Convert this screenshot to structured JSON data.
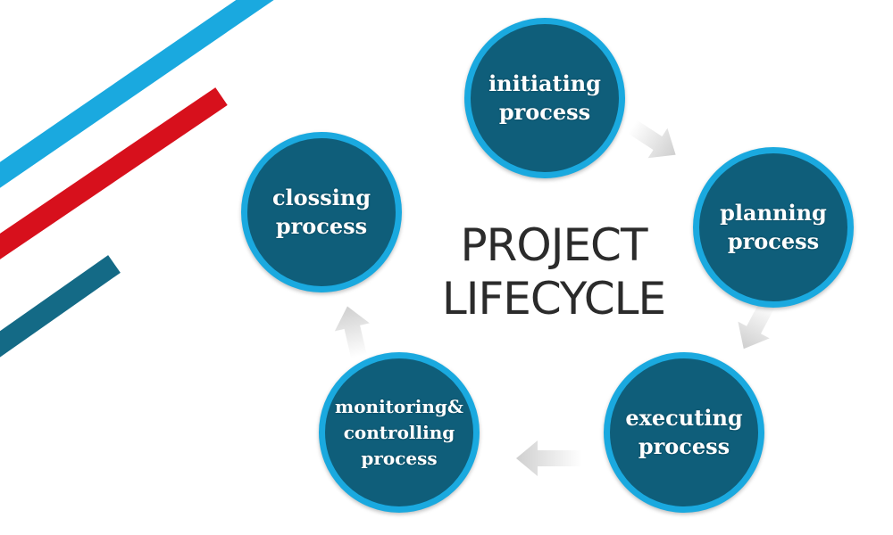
{
  "diagram": {
    "title": "PROJECT\nLIFECYCLE",
    "nodes": [
      {
        "id": "initiating",
        "label": "initiating\nprocess"
      },
      {
        "id": "planning",
        "label": "planning\nprocess"
      },
      {
        "id": "executing",
        "label": "executing\nprocess"
      },
      {
        "id": "monitoring",
        "label": "monitoring&\ncontrolling\nprocess"
      },
      {
        "id": "closing",
        "label": "clossing\nprocess"
      }
    ],
    "flow": [
      "initiating",
      "planning",
      "executing",
      "monitoring",
      "closing"
    ]
  },
  "colors": {
    "node_fill": "#0f5e7a",
    "node_ring": "#1aa9df",
    "title_text": "#2b2b2b",
    "arrow": "#cfcfcf",
    "stripe_blue": "#1aa9df",
    "stripe_red": "#d7101c",
    "stripe_teal": "#146a86"
  }
}
